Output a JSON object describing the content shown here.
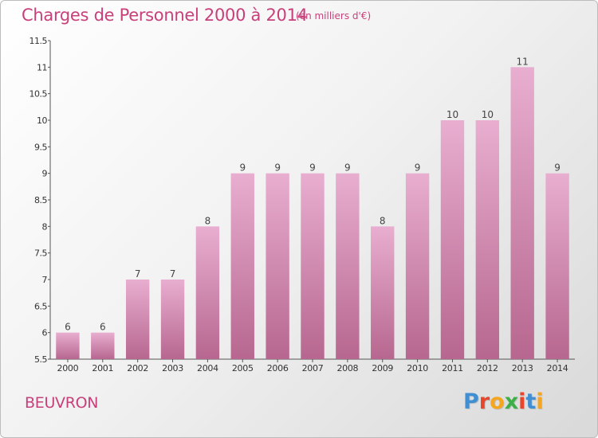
{
  "header": {
    "title": "Charges de Personnel 2000 à 2014",
    "subtitle": "(en milliers d'€)"
  },
  "footer": {
    "commune": "BEUVRON",
    "logo_letters": [
      "P",
      "r",
      "o",
      "x",
      "i",
      "t",
      "i"
    ],
    "logo_colors": [
      "#3f8fd2",
      "#e6462b",
      "#f4a620",
      "#3fae49",
      "#e6462b",
      "#3f8fd2",
      "#f4a620"
    ]
  },
  "colors": {
    "accent": "#c8407a",
    "bar_top": "#e8aed0",
    "bar_bottom": "#b7678f"
  },
  "chart_data": {
    "type": "bar",
    "title": "Charges de Personnel 2000 à 2014",
    "subtitle": "(en milliers d'€)",
    "xlabel": "",
    "ylabel": "",
    "categories": [
      "2000",
      "2001",
      "2002",
      "2003",
      "2004",
      "2005",
      "2006",
      "2007",
      "2008",
      "2009",
      "2010",
      "2011",
      "2012",
      "2013",
      "2014"
    ],
    "values": [
      6,
      6,
      7,
      7,
      8,
      9,
      9,
      9,
      9,
      8,
      9,
      10,
      10,
      11,
      9
    ],
    "data_labels": [
      "6",
      "6",
      "7",
      "7",
      "8",
      "9",
      "9",
      "9",
      "9",
      "8",
      "9",
      "10",
      "10",
      "11",
      "9"
    ],
    "ylim": [
      5.5,
      11.5
    ],
    "yticks": [
      "5.5",
      "6",
      "6.5",
      "7",
      "7.5",
      "8",
      "8.5",
      "9",
      "9.5",
      "10",
      "10.5",
      "11",
      "11.5"
    ],
    "ytick_values": [
      5.5,
      6,
      6.5,
      7,
      7.5,
      8,
      8.5,
      9,
      9.5,
      10,
      10.5,
      11,
      11.5
    ],
    "grid": false,
    "legend": "none"
  }
}
